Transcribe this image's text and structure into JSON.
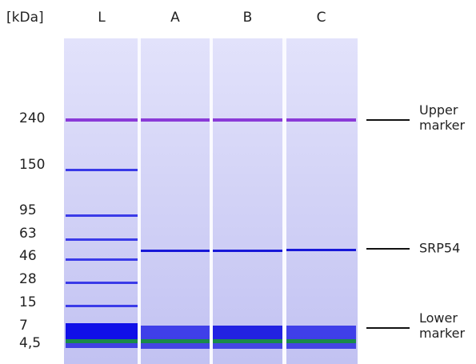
{
  "unit_label": "[kDa]",
  "lanes": [
    "L",
    "A",
    "B",
    "C"
  ],
  "ladder_labels": [
    "240",
    "150",
    "95",
    "63",
    "46",
    "28",
    "15",
    "7",
    "4,5"
  ],
  "annotations": [
    {
      "lines": [
        "Upper",
        "marker"
      ]
    },
    {
      "lines": [
        "SRP54"
      ]
    },
    {
      "lines": [
        "Lower",
        "marker"
      ]
    }
  ]
}
